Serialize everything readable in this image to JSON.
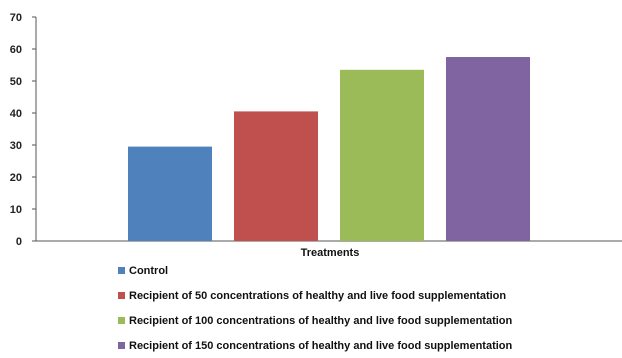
{
  "chart_data": {
    "type": "bar",
    "categories": [
      "Control",
      "Recipient of 50 concentrations of healthy and live food supplementation",
      "Recipient of 100 concentrations of healthy and live food supplementation",
      "Recipient of 150 concentrations of healthy and live food supplementation"
    ],
    "values": [
      29.5,
      40.5,
      53.5,
      57.5
    ],
    "colors": [
      "#4F81BD",
      "#C0504D",
      "#9BBB59",
      "#8064A2"
    ],
    "xlabel": "Treatments",
    "ylabel": "",
    "ylim": [
      0,
      70
    ],
    "yticks": [
      0,
      10,
      20,
      30,
      40,
      50,
      60,
      70
    ],
    "grid": false,
    "legend_position": "bottom"
  }
}
